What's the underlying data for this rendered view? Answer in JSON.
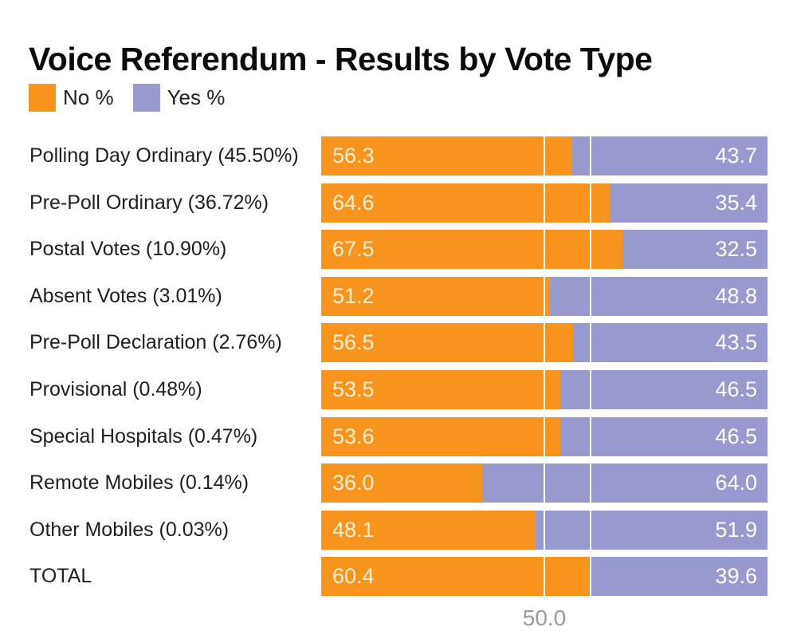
{
  "title": "Voice Referendum - Results by Vote Type",
  "legend": {
    "no_label": "No %",
    "yes_label": "Yes %"
  },
  "colors": {
    "no_bar": "#F7941D",
    "yes_bar": "#9799CF",
    "value_on_no": "#F8F1DC",
    "value_on_yes": "#FFFFFF",
    "tick_label": "#9B9B9B",
    "category_label": "#1F1F1F",
    "title": "#0B0B0B",
    "gridline": "#FFFFFF"
  },
  "chart_data": {
    "type": "bar",
    "orientation": "horizontal-stacked",
    "title": "Voice Referendum - Results by Vote Type",
    "categories": [
      "Polling Day Ordinary (45.50%)",
      "Pre-Poll Ordinary (36.72%)",
      "Postal Votes (10.90%)",
      "Absent Votes (3.01%)",
      "Pre-Poll Declaration (2.76%)",
      "Provisional (0.48%)",
      "Special Hospitals (0.47%)",
      "Remote Mobiles (0.14%)",
      "Other Mobiles (0.03%)",
      "TOTAL"
    ],
    "series": [
      {
        "name": "No %",
        "color": "#F7941D",
        "values": [
          56.3,
          64.6,
          67.5,
          51.2,
          56.5,
          53.5,
          53.6,
          36.0,
          48.1,
          60.4
        ]
      },
      {
        "name": "Yes %",
        "color": "#9799CF",
        "values": [
          43.7,
          35.4,
          32.5,
          48.8,
          43.5,
          46.5,
          46.5,
          64.0,
          51.9,
          39.6
        ]
      }
    ],
    "xlim": [
      0,
      100
    ],
    "x_tick_value": 50.0,
    "x_tick_label": "50.0",
    "gridlines": [
      50.0,
      60.3
    ],
    "grid_on": true,
    "legend_position": "top-left",
    "value_labels": "inside bar ends, one decimal place"
  }
}
